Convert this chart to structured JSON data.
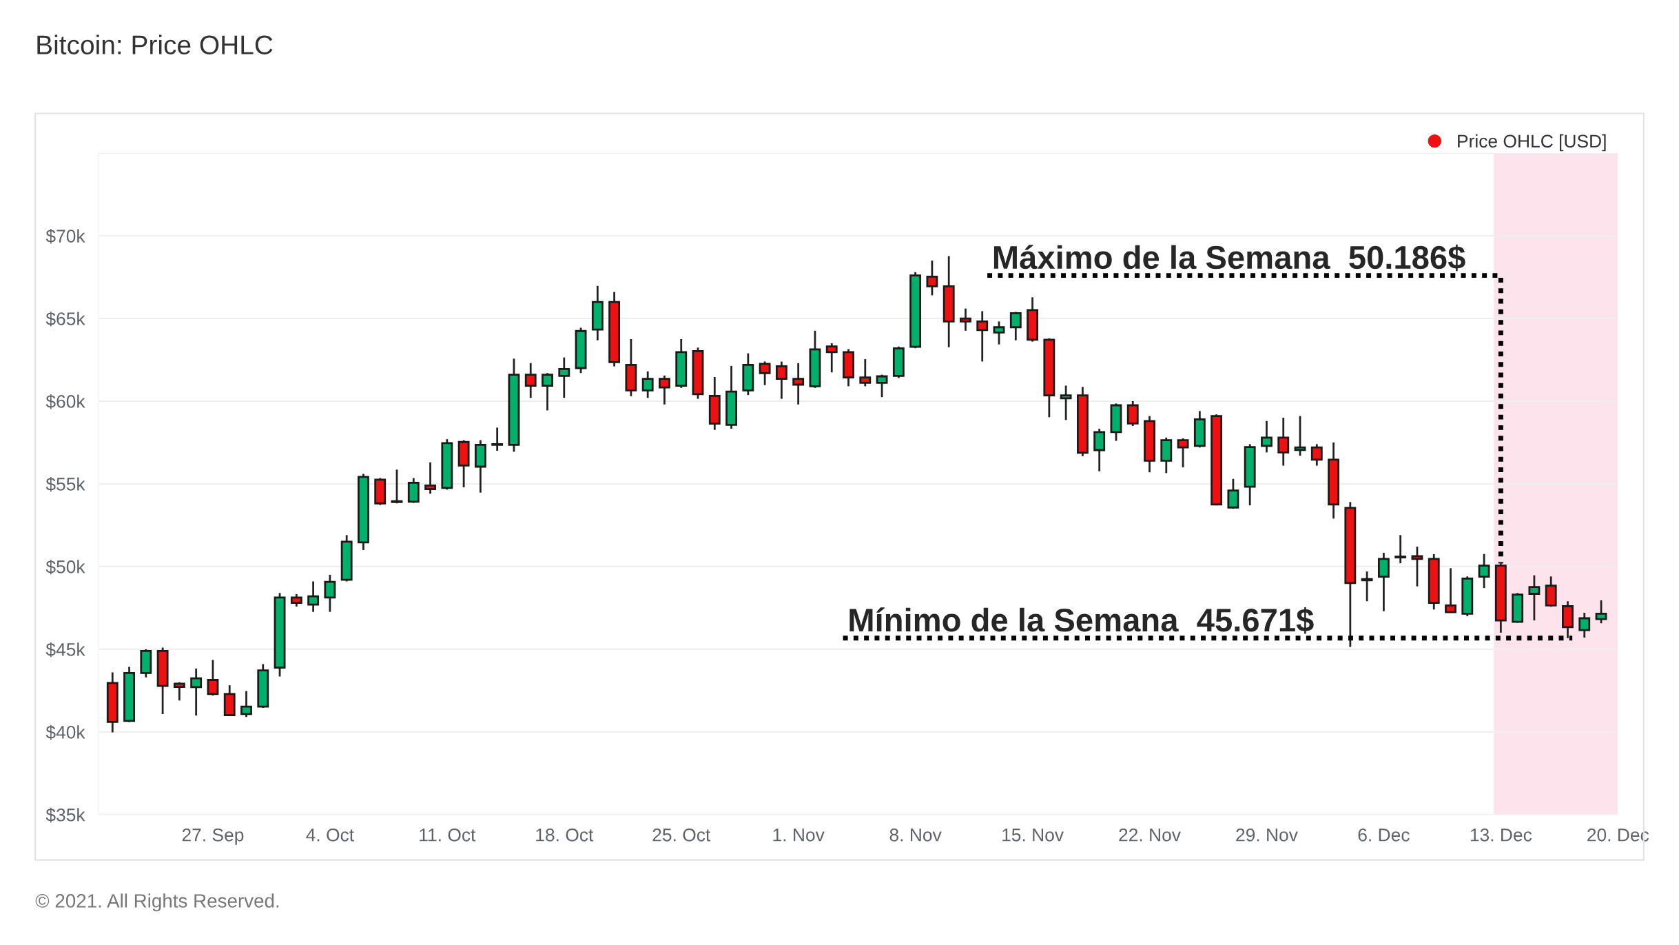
{
  "chart_data": {
    "type": "candlestick",
    "title": "Bitcoin: Price OHLC",
    "x": [
      "2021-09-21",
      "2021-09-22",
      "2021-09-23",
      "2021-09-24",
      "2021-09-25",
      "2021-09-26",
      "2021-09-27",
      "2021-09-28",
      "2021-09-29",
      "2021-09-30",
      "2021-10-01",
      "2021-10-02",
      "2021-10-03",
      "2021-10-04",
      "2021-10-05",
      "2021-10-06",
      "2021-10-07",
      "2021-10-08",
      "2021-10-09",
      "2021-10-10",
      "2021-10-11",
      "2021-10-12",
      "2021-10-13",
      "2021-10-14",
      "2021-10-15",
      "2021-10-16",
      "2021-10-17",
      "2021-10-18",
      "2021-10-19",
      "2021-10-20",
      "2021-10-21",
      "2021-10-22",
      "2021-10-23",
      "2021-10-24",
      "2021-10-25",
      "2021-10-26",
      "2021-10-27",
      "2021-10-28",
      "2021-10-29",
      "2021-10-30",
      "2021-10-31",
      "2021-11-01",
      "2021-11-02",
      "2021-11-03",
      "2021-11-04",
      "2021-11-05",
      "2021-11-06",
      "2021-11-07",
      "2021-11-08",
      "2021-11-09",
      "2021-11-10",
      "2021-11-11",
      "2021-11-12",
      "2021-11-13",
      "2021-11-14",
      "2021-11-15",
      "2021-11-16",
      "2021-11-17",
      "2021-11-18",
      "2021-11-19",
      "2021-11-20",
      "2021-11-21",
      "2021-11-22",
      "2021-11-23",
      "2021-11-24",
      "2021-11-25",
      "2021-11-26",
      "2021-11-27",
      "2021-11-28",
      "2021-11-29",
      "2021-11-30",
      "2021-12-01",
      "2021-12-02",
      "2021-12-03",
      "2021-12-04",
      "2021-12-05",
      "2021-12-06",
      "2021-12-07",
      "2021-12-08",
      "2021-12-09",
      "2021-12-10",
      "2021-12-11",
      "2021-12-12",
      "2021-12-13",
      "2021-12-14",
      "2021-12-15",
      "2021-12-16",
      "2021-12-17",
      "2021-12-18",
      "2021-12-19"
    ],
    "series": [
      {
        "name": "Price OHLC [USD]",
        "color": "#ee1111",
        "colors": [
          "#ee1111",
          "#00b06b",
          "#00b06b",
          "#ee1111",
          "#ee1111",
          "#00b06b",
          "#ee1111",
          "#ee1111",
          "#00b06b",
          "#00b06b",
          "#00b06b",
          "#ee1111",
          "#00b06b",
          "#00b06b",
          "#00b06b",
          "#00b06b",
          "#ee1111",
          "#00b06b",
          "#00b06b",
          "#ee1111",
          "#00b06b",
          "#ee1111",
          "#00b06b",
          "#00b06b",
          "#00b06b",
          "#ee1111",
          "#00b06b",
          "#00b06b",
          "#00b06b",
          "#00b06b",
          "#ee1111",
          "#ee1111",
          "#00b06b",
          "#ee1111",
          "#00b06b",
          "#ee1111",
          "#ee1111",
          "#00b06b",
          "#00b06b",
          "#ee1111",
          "#ee1111",
          "#ee1111",
          "#00b06b",
          "#ee1111",
          "#ee1111",
          "#ee1111",
          "#00b06b",
          "#00b06b",
          "#00b06b",
          "#ee1111",
          "#ee1111",
          "#ee1111",
          "#ee1111",
          "#00b06b",
          "#00b06b",
          "#ee1111",
          "#ee1111",
          "#00b06b",
          "#ee1111",
          "#00b06b",
          "#00b06b",
          "#ee1111",
          "#ee1111",
          "#00b06b",
          "#ee1111",
          "#00b06b",
          "#ee1111",
          "#00b06b",
          "#00b06b",
          "#00b06b",
          "#ee1111",
          "#00b06b",
          "#ee1111",
          "#ee1111",
          "#ee1111",
          "#ee1111",
          "#00b06b",
          "#00b06b",
          "#ee1111",
          "#ee1111",
          "#ee1111",
          "#00b06b",
          "#00b06b",
          "#ee1111",
          "#00b06b",
          "#00b06b",
          "#ee1111",
          "#ee1111",
          "#00b06b",
          "#00b06b"
        ],
        "ohlc": [
          [
            42960,
            43600,
            39970,
            40600
          ],
          [
            40670,
            43930,
            40600,
            43560
          ],
          [
            43560,
            45000,
            43300,
            44900
          ],
          [
            44900,
            45100,
            41080,
            42780
          ],
          [
            42920,
            43000,
            41900,
            42720
          ],
          [
            42710,
            43830,
            40990,
            43240
          ],
          [
            43140,
            44350,
            42200,
            42290
          ],
          [
            42290,
            42820,
            40950,
            41010
          ],
          [
            41080,
            42470,
            40900,
            41530
          ],
          [
            41530,
            44100,
            41450,
            43720
          ],
          [
            43890,
            48400,
            43350,
            48130
          ],
          [
            48130,
            48330,
            47580,
            47800
          ],
          [
            47700,
            49100,
            47260,
            48200
          ],
          [
            48130,
            49500,
            47260,
            49070
          ],
          [
            49200,
            51900,
            49100,
            51500
          ],
          [
            51460,
            55600,
            51000,
            55420
          ],
          [
            55250,
            55350,
            53720,
            53820
          ],
          [
            53900,
            55860,
            53820,
            53950
          ],
          [
            53920,
            55350,
            53850,
            55070
          ],
          [
            54900,
            56300,
            54400,
            54680
          ],
          [
            54750,
            57700,
            54650,
            57460
          ],
          [
            57530,
            57640,
            54790,
            56110
          ],
          [
            56040,
            57640,
            54470,
            57360
          ],
          [
            57360,
            58400,
            57000,
            57400
          ],
          [
            57360,
            62570,
            56940,
            61600
          ],
          [
            61600,
            62300,
            60200,
            60930
          ],
          [
            60930,
            61700,
            59440,
            61600
          ],
          [
            61530,
            62640,
            60200,
            61940
          ],
          [
            62000,
            64440,
            61700,
            64240
          ],
          [
            64330,
            66970,
            63680,
            66000
          ],
          [
            66000,
            66600,
            62100,
            62360
          ],
          [
            62190,
            63750,
            60300,
            60650
          ],
          [
            60650,
            61800,
            60200,
            61350
          ],
          [
            61350,
            61550,
            59800,
            60830
          ],
          [
            60930,
            63750,
            60800,
            62960
          ],
          [
            63030,
            63240,
            60140,
            60420
          ],
          [
            60320,
            61460,
            58260,
            58640
          ],
          [
            58570,
            62130,
            58330,
            60580
          ],
          [
            60650,
            62890,
            60370,
            62190
          ],
          [
            62260,
            62400,
            60970,
            61690
          ],
          [
            62110,
            62390,
            60140,
            61350
          ],
          [
            61350,
            62300,
            59800,
            61000
          ],
          [
            60900,
            64260,
            60800,
            63130
          ],
          [
            63310,
            63500,
            61740,
            62960
          ],
          [
            62960,
            63150,
            60900,
            61430
          ],
          [
            61430,
            62540,
            60900,
            61110
          ],
          [
            61110,
            61600,
            60240,
            61500
          ],
          [
            61530,
            63300,
            61400,
            63190
          ],
          [
            63290,
            67800,
            63200,
            67600
          ],
          [
            67530,
            68500,
            66400,
            66940
          ],
          [
            66940,
            68770,
            63260,
            64820
          ],
          [
            65000,
            65600,
            64260,
            64820
          ],
          [
            64820,
            65440,
            62400,
            64300
          ],
          [
            64150,
            64820,
            63430,
            64470
          ],
          [
            64470,
            65400,
            63680,
            65320
          ],
          [
            65510,
            66280,
            63600,
            63710
          ],
          [
            63710,
            63800,
            59030,
            60350
          ],
          [
            60170,
            60940,
            58860,
            60350
          ],
          [
            60350,
            60860,
            56670,
            56880
          ],
          [
            57040,
            58330,
            55760,
            58130
          ],
          [
            58130,
            59860,
            57600,
            59750
          ],
          [
            59750,
            60000,
            58500,
            58650
          ],
          [
            58800,
            59100,
            55700,
            56400
          ],
          [
            56400,
            57800,
            55650,
            57640
          ],
          [
            57640,
            57750,
            56000,
            57200
          ],
          [
            57300,
            59400,
            57200,
            58900
          ],
          [
            59100,
            59200,
            53700,
            53750
          ],
          [
            53570,
            55300,
            53500,
            54600
          ],
          [
            54830,
            57400,
            53700,
            57220
          ],
          [
            57300,
            58800,
            56900,
            57800
          ],
          [
            57800,
            59000,
            56100,
            56900
          ],
          [
            57050,
            59100,
            56700,
            57200
          ],
          [
            57200,
            57400,
            56100,
            56460
          ],
          [
            56460,
            57500,
            52900,
            53750
          ],
          [
            53540,
            53900,
            45140,
            49000
          ],
          [
            49240,
            49700,
            47900,
            49170
          ],
          [
            49390,
            50830,
            47300,
            50460
          ],
          [
            50550,
            51900,
            50200,
            50600
          ],
          [
            50630,
            51200,
            48800,
            50460
          ],
          [
            50460,
            50750,
            47400,
            47800
          ],
          [
            47650,
            49900,
            47200,
            47240
          ],
          [
            47150,
            49400,
            47000,
            49270
          ],
          [
            49390,
            50760,
            48700,
            50050
          ],
          [
            50050,
            50186,
            46000,
            46740
          ],
          [
            46660,
            48400,
            46600,
            48300
          ],
          [
            48350,
            49470,
            46740,
            48760
          ],
          [
            48840,
            49400,
            47570,
            47650
          ],
          [
            47600,
            47900,
            45671,
            46330
          ],
          [
            46160,
            47200,
            45700,
            46870
          ],
          [
            46820,
            47950,
            46570,
            47150
          ]
        ]
      }
    ],
    "xlim": [
      "2021-09-20T04:00",
      "2021-12-20"
    ],
    "xticks": [
      {
        "value": "2021-09-27",
        "label": "27. Sep"
      },
      {
        "value": "2021-10-04",
        "label": "4. Oct"
      },
      {
        "value": "2021-10-11",
        "label": "11. Oct"
      },
      {
        "value": "2021-10-18",
        "label": "18. Oct"
      },
      {
        "value": "2021-10-25",
        "label": "25. Oct"
      },
      {
        "value": "2021-11-01",
        "label": "1. Nov"
      },
      {
        "value": "2021-11-08",
        "label": "8. Nov"
      },
      {
        "value": "2021-11-15",
        "label": "15. Nov"
      },
      {
        "value": "2021-11-22",
        "label": "22. Nov"
      },
      {
        "value": "2021-11-29",
        "label": "29. Nov"
      },
      {
        "value": "2021-12-06",
        "label": "6. Dec"
      },
      {
        "value": "2021-12-13",
        "label": "13. Dec"
      },
      {
        "value": "2021-12-20",
        "label": "20. Dec"
      }
    ],
    "ylim": [
      35000,
      75000
    ],
    "yticks": [
      {
        "value": 35000,
        "label": "$35k"
      },
      {
        "value": 40000,
        "label": "$40k"
      },
      {
        "value": 45000,
        "label": "$45k"
      },
      {
        "value": 50000,
        "label": "$50k"
      },
      {
        "value": 55000,
        "label": "$55k"
      },
      {
        "value": 60000,
        "label": "$60k"
      },
      {
        "value": 65000,
        "label": "$65k"
      },
      {
        "value": 70000,
        "label": "$70k"
      },
      {
        "value": 75000,
        "label": null
      }
    ],
    "grid": "y",
    "legend": "top right",
    "ref_lines": [
      {
        "axis": "y",
        "value": 45671,
        "label": "Mínimo de la Semana  45.671$",
        "color": "#000000",
        "line_style": "dotted"
      }
    ],
    "bands": [
      {
        "axis": "x",
        "from": "2021-12-12T14:00",
        "to": "2021-12-20",
        "color": "#fde4ec"
      }
    ],
    "annotations": [
      {
        "text": "Máximo de la Semana  50.186$",
        "x": "2021-12-13",
        "y": 50186
      },
      "© 2021. All Rights Reserved."
    ]
  }
}
